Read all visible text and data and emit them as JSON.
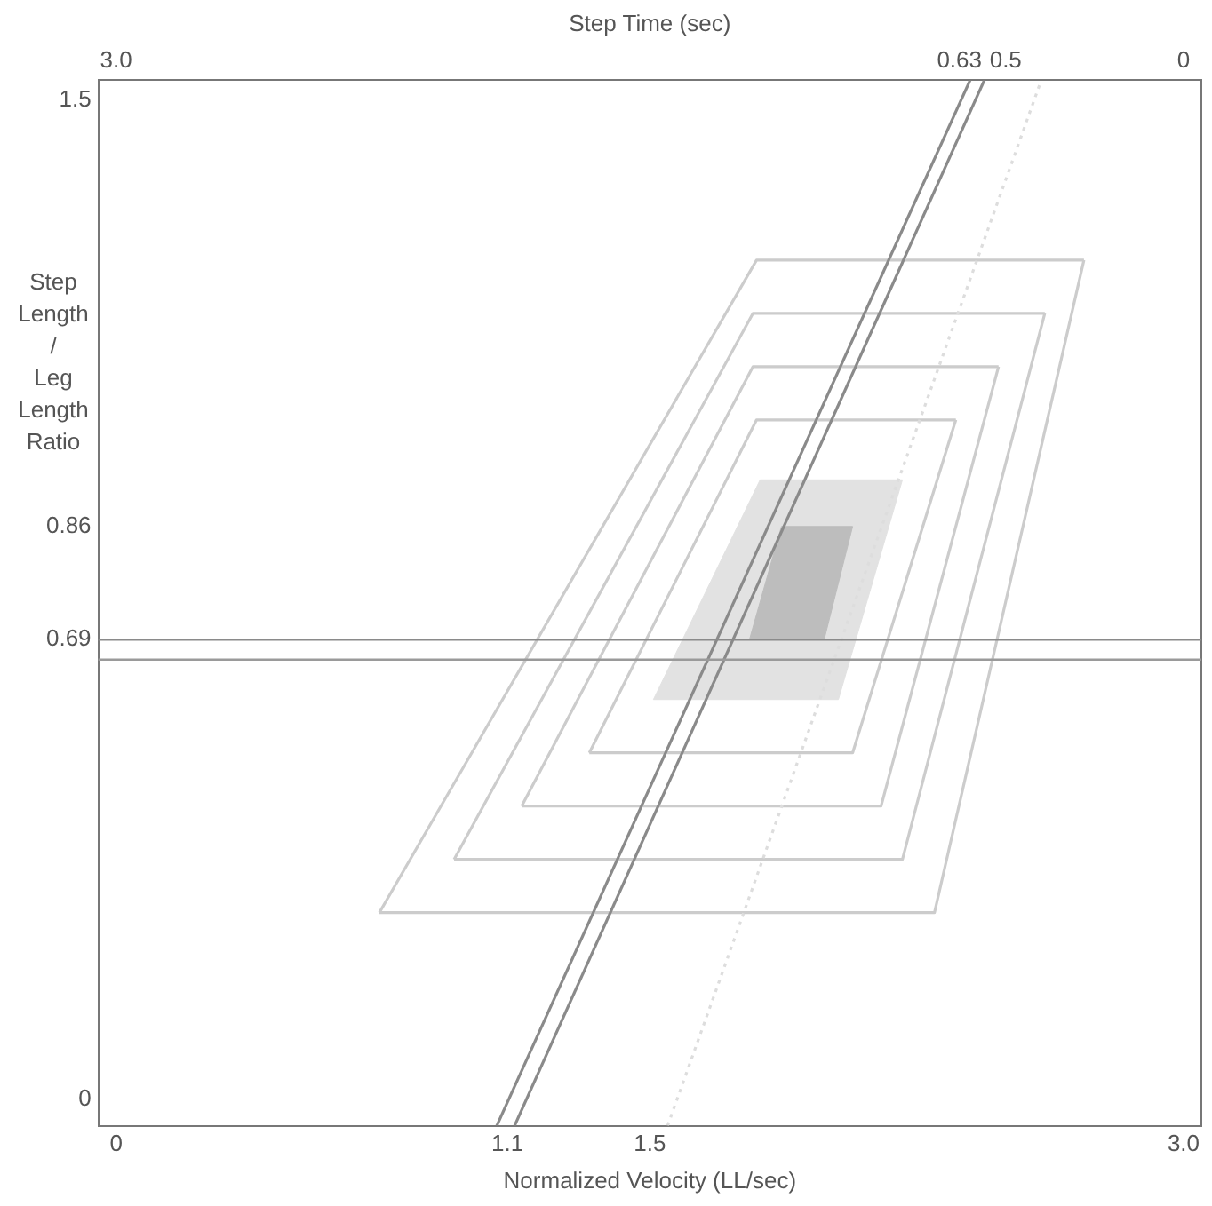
{
  "chart_data": {
    "type": "line",
    "xlabel": "Normalized Velocity (LL/sec)",
    "x2label": "Step Time (sec)",
    "ylabel": "Step Length / Leg Length Ratio",
    "xlim": [
      -0.05,
      3.05
    ],
    "xticks": [
      0,
      1.1,
      1.5,
      {
        "value": 3,
        "label": "3.0"
      }
    ],
    "x2lim": [
      3.05,
      -0.05
    ],
    "x2ticks": [
      {
        "value": 3,
        "label": "3.0"
      },
      0.63,
      0.5,
      0
    ],
    "ylim": [
      -0.04,
      1.53
    ],
    "yticks": [
      0,
      0.69,
      0.86,
      1.5
    ],
    "grid": false,
    "legend": false,
    "marker": "none",
    "series": [
      {
        "color": "#cccccc",
        "x": [
          0.74,
          1.8,
          2.72
        ],
        "values": [
          0.28,
          1.26,
          1.26
        ]
      },
      {
        "color": "#cccccc",
        "x": [
          0.74,
          2.3,
          2.72
        ],
        "values": [
          0.28,
          0.28,
          1.26
        ]
      },
      {
        "color": "#cccccc",
        "x": [
          0.95,
          1.79,
          2.61
        ],
        "values": [
          0.36,
          1.18,
          1.18
        ]
      },
      {
        "color": "#cccccc",
        "x": [
          0.95,
          2.21,
          2.61
        ],
        "values": [
          0.36,
          0.36,
          1.18
        ]
      },
      {
        "color": "#cccccc",
        "x": [
          1.14,
          1.79,
          2.48
        ],
        "values": [
          0.44,
          1.1,
          1.1
        ]
      },
      {
        "color": "#cccccc",
        "x": [
          1.14,
          2.15,
          2.48
        ],
        "values": [
          0.44,
          0.44,
          1.1
        ]
      },
      {
        "color": "#cccccc",
        "x": [
          1.33,
          1.8,
          2.36
        ],
        "values": [
          0.52,
          1.02,
          1.02
        ]
      },
      {
        "color": "#cccccc",
        "x": [
          1.33,
          2.07,
          2.36
        ],
        "values": [
          0.52,
          0.52,
          1.02
        ]
      },
      {
        "type": "area",
        "color": "#e2e2e2",
        "x": [
          1.81,
          2.21,
          2.03,
          1.51,
          1.81
        ],
        "values": [
          0.93,
          0.93,
          0.6,
          0.6,
          0.93
        ]
      },
      {
        "type": "area",
        "color": "#bdbdbd",
        "x": [
          1.87,
          2.07,
          1.99,
          1.78,
          1.87
        ],
        "values": [
          0.86,
          0.86,
          0.69,
          0.69,
          0.86
        ]
      },
      {
        "color": "#dddddd",
        "line_style": "dotted",
        "x": [
          1.55,
          2.6
        ],
        "values": [
          -0.04,
          1.53
        ]
      },
      {
        "color": "#8a8a8a",
        "x": [
          1.07,
          2.4
        ],
        "values": [
          -0.04,
          1.53
        ]
      },
      {
        "color": "#8a8a8a",
        "x": [
          1.12,
          2.44
        ],
        "values": [
          -0.04,
          1.53
        ]
      }
    ],
    "ref_lines": [
      {
        "axis": "y",
        "value": 0.69,
        "color": "#8a8a8a"
      },
      {
        "axis": "y",
        "value": 0.66,
        "color": "#9a9a9a"
      }
    ]
  }
}
